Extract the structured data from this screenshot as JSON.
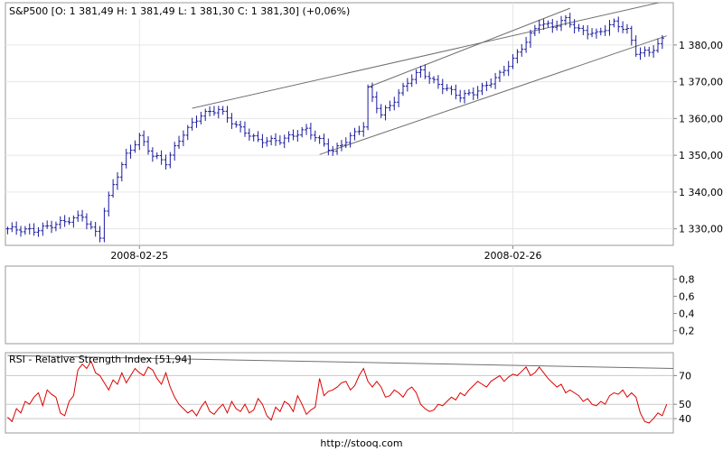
{
  "chart_data": [
    {
      "type": "ohlc",
      "title": "S&P500 [O: 1 381,49  H: 1 381,49  L: 1 381,30  C: 1 381,30] (+0,06%)",
      "x_tick_labels": [
        "2008-02-25",
        "2008-02-26"
      ],
      "y_tick_labels": [
        "1 330,00",
        "1 340,00",
        "1 350,00",
        "1 360,00",
        "1 370,00",
        "1 380,00"
      ],
      "y_ticks": [
        1330,
        1340,
        1350,
        1360,
        1370,
        1380
      ],
      "ylim": [
        1325.5,
        1391.5
      ],
      "grid": true,
      "n_bars": 150,
      "bar_color": "#1a1a9e",
      "price_path": [
        [
          0,
          1330
        ],
        [
          6,
          1329.5
        ],
        [
          13,
          1332
        ],
        [
          17,
          1333.5
        ],
        [
          19,
          1330
        ],
        [
          21,
          1328
        ],
        [
          22,
          1335
        ],
        [
          24,
          1342
        ],
        [
          27,
          1350
        ],
        [
          30,
          1355
        ],
        [
          33,
          1350
        ],
        [
          36,
          1348
        ],
        [
          40,
          1356
        ],
        [
          44,
          1361
        ],
        [
          48,
          1362.5
        ],
        [
          52,
          1358
        ],
        [
          57,
          1354
        ],
        [
          62,
          1354
        ],
        [
          68,
          1357
        ],
        [
          72,
          1353
        ],
        [
          74,
          1351
        ],
        [
          78,
          1355
        ],
        [
          81,
          1358
        ],
        [
          82,
          1368
        ],
        [
          85,
          1361
        ],
        [
          88,
          1365
        ],
        [
          91,
          1370
        ],
        [
          94,
          1373
        ],
        [
          97,
          1370
        ],
        [
          100,
          1368
        ],
        [
          103,
          1366
        ],
        [
          106,
          1367
        ],
        [
          109,
          1369
        ],
        [
          112,
          1372
        ],
        [
          115,
          1376
        ],
        [
          118,
          1381
        ],
        [
          121,
          1386
        ],
        [
          124,
          1385
        ],
        [
          127,
          1387
        ],
        [
          130,
          1384
        ],
        [
          134,
          1383
        ],
        [
          138,
          1386
        ],
        [
          141,
          1384
        ],
        [
          143,
          1378
        ],
        [
          146,
          1378
        ],
        [
          149,
          1381.3
        ]
      ],
      "trend_lines": [
        {
          "from": [
            42,
            1362.8
          ],
          "to": [
            150,
            1392
          ]
        },
        {
          "from": [
            82,
            1368.5
          ],
          "to": [
            128,
            1390
          ]
        },
        {
          "from": [
            71,
            1350.2
          ],
          "to": [
            150,
            1382.5
          ]
        }
      ]
    },
    {
      "type": "line",
      "title": "",
      "y_tick_labels": [
        "0,2",
        "0,4",
        "0,6",
        "0,8"
      ],
      "y_ticks": [
        0.2,
        0.4,
        0.6,
        0.8
      ],
      "ylim": [
        0.05,
        0.95
      ],
      "grid": true,
      "series": []
    },
    {
      "type": "line",
      "title": "RSI - Relative Strength Index [51,94]",
      "y_tick_labels": [
        "40",
        "50",
        "70"
      ],
      "y_ticks": [
        40,
        50,
        70
      ],
      "ylim": [
        30,
        86
      ],
      "grid": true,
      "reference_line": {
        "from": [
          0,
          84
        ],
        "to": [
          150,
          75
        ]
      },
      "series": [
        {
          "color": "#dd0000",
          "x_count": 150,
          "values": [
            41,
            38,
            47,
            44,
            52,
            50,
            55,
            58,
            49,
            60,
            57,
            55,
            44,
            42,
            52,
            56,
            74,
            78,
            75,
            80,
            72,
            70,
            65,
            60,
            67,
            64,
            72,
            65,
            70,
            75,
            72,
            70,
            76,
            74,
            68,
            64,
            72,
            62,
            55,
            50,
            47,
            44,
            46,
            42,
            48,
            52,
            45,
            43,
            47,
            50,
            44,
            52,
            47,
            45,
            50,
            44,
            46,
            54,
            50,
            42,
            39,
            48,
            45,
            52,
            50,
            45,
            56,
            50,
            43,
            46,
            48,
            68,
            56,
            59,
            60,
            62,
            65,
            66,
            60,
            63,
            70,
            75,
            66,
            62,
            66,
            62,
            55,
            56,
            60,
            58,
            55,
            60,
            62,
            58,
            50,
            47,
            45,
            46,
            50,
            49,
            52,
            55,
            53,
            58,
            56,
            60,
            63,
            66,
            64,
            62,
            66,
            68,
            70,
            66,
            69,
            71,
            70,
            73,
            76,
            70,
            72,
            76,
            72,
            68,
            65,
            62,
            64,
            58,
            60,
            58,
            56,
            52,
            54,
            50,
            49,
            52,
            50,
            56,
            58,
            57,
            60,
            55,
            58,
            55,
            44,
            38,
            37,
            40,
            44,
            42,
            50
          ]
        }
      ]
    }
  ],
  "footer": {
    "url_text": "http://stooq.com"
  }
}
